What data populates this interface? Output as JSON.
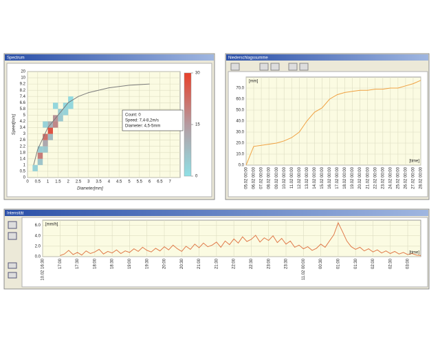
{
  "chart_data": [
    {
      "type": "heatmap",
      "title": "Spectrum",
      "x_label": "Diameter[mm]",
      "y_label": "Speed[m/s]",
      "xlim": [
        0,
        7.5
      ],
      "xticks": [
        0,
        0.5,
        1,
        1.5,
        2,
        2.5,
        3,
        3.5,
        4,
        4.5,
        5,
        5.5,
        6,
        6.5,
        7
      ],
      "yscale": "class",
      "yticks": [
        0,
        0.5,
        1,
        1.4,
        1.8,
        2.2,
        2.6,
        3,
        3.4,
        4.2,
        5,
        5.8,
        6.6,
        7.4,
        8.2,
        9.2,
        10,
        20
      ],
      "clim": [
        0,
        30
      ],
      "cticks": [
        0,
        15,
        30
      ],
      "colormap": [
        "#8fe0e6",
        "#b59aa0",
        "#e8402a"
      ],
      "grid": true,
      "cells": [
        {
          "x": [
            0.25,
            0.5
          ],
          "y": [
            0.5,
            1
          ],
          "count": 3
        },
        {
          "x": [
            0.5,
            0.75
          ],
          "y": [
            1,
            1.4
          ],
          "count": 6
        },
        {
          "x": [
            0.5,
            0.75
          ],
          "y": [
            1.4,
            1.8
          ],
          "count": 20
        },
        {
          "x": [
            0.5,
            0.75
          ],
          "y": [
            1.8,
            2.2
          ],
          "count": 4
        },
        {
          "x": [
            0.75,
            1
          ],
          "y": [
            1.8,
            2.2
          ],
          "count": 5
        },
        {
          "x": [
            0.75,
            1
          ],
          "y": [
            2.2,
            2.6
          ],
          "count": 12
        },
        {
          "x": [
            0.75,
            1
          ],
          "y": [
            2.6,
            3
          ],
          "count": 22
        },
        {
          "x": [
            1,
            1.25
          ],
          "y": [
            2.6,
            3
          ],
          "count": 8
        },
        {
          "x": [
            1,
            1.25
          ],
          "y": [
            3,
            3.4
          ],
          "count": 27
        },
        {
          "x": [
            1,
            1.25
          ],
          "y": [
            3.4,
            4.2
          ],
          "count": 10
        },
        {
          "x": [
            1.25,
            1.5
          ],
          "y": [
            3.4,
            4.2
          ],
          "count": 18
        },
        {
          "x": [
            1.25,
            1.5
          ],
          "y": [
            4.2,
            5
          ],
          "count": 16
        },
        {
          "x": [
            1.5,
            1.75
          ],
          "y": [
            4.2,
            5
          ],
          "count": 5
        },
        {
          "x": [
            1.5,
            1.75
          ],
          "y": [
            5,
            5.8
          ],
          "count": 4
        },
        {
          "x": [
            1.75,
            2
          ],
          "y": [
            5,
            5.8
          ],
          "count": 3
        },
        {
          "x": [
            1.75,
            2
          ],
          "y": [
            5.8,
            6.6
          ],
          "count": 2
        },
        {
          "x": [
            2,
            2.25
          ],
          "y": [
            5.8,
            6.6
          ],
          "count": 2
        },
        {
          "x": [
            2,
            2.25
          ],
          "y": [
            6.6,
            7.4
          ],
          "count": 1
        },
        {
          "x": [
            1.25,
            1.5
          ],
          "y": [
            5.8,
            6.6
          ],
          "count": 2
        },
        {
          "x": [
            0.75,
            1
          ],
          "y": [
            3.4,
            4.2
          ],
          "count": 3
        }
      ],
      "curve": {
        "color": "#7a7a7a",
        "x": [
          0.3,
          0.5,
          1,
          1.5,
          2,
          2.5,
          3,
          4,
          5,
          6
        ],
        "y": [
          1,
          2,
          3.4,
          5,
          6.6,
          7.4,
          7.9,
          8.6,
          9,
          9.2
        ]
      },
      "annotations": [
        "Count: 0",
        "Speed: 7,4-8,2m/s",
        "Diameter: 4,5-5mm"
      ]
    },
    {
      "type": "line",
      "title": "Niederschlagssumme",
      "y_label": "[mm]",
      "x_label": "[time]",
      "categories": [
        "05.02 00:00",
        "06.02 00:00",
        "07.02 00:00",
        "08.02 00:00",
        "09.02 00:00",
        "10.02 00:00",
        "11.02 00:00",
        "12.02 00:00",
        "13.02 00:00",
        "14.02 00:00",
        "15.02 00:00",
        "16.02 00:00",
        "17.02 00:00",
        "18.02 00:00",
        "19.02 00:00",
        "20.02 00:00",
        "21.02 00:00",
        "22.02 00:00",
        "23.02 00:00",
        "24.02 00:00",
        "25.02 00:00",
        "26.02 00:00",
        "27.02 00:00",
        "28.02 00:00"
      ],
      "values": [
        0,
        17,
        18,
        19,
        20,
        22,
        25,
        30,
        40,
        48,
        52,
        60,
        64,
        66,
        67,
        68,
        68,
        69,
        69,
        70,
        70,
        72,
        74,
        77
      ],
      "color": "#f0a040",
      "ylim": [
        0,
        80
      ],
      "yticks": [
        {
          "value": 0,
          "label": "0.0"
        },
        {
          "value": 10,
          "label": "10.0"
        },
        {
          "value": 20,
          "label": "20.0"
        },
        {
          "value": 30,
          "label": "30.0"
        },
        {
          "value": 40,
          "label": "40.0"
        },
        {
          "value": 50,
          "label": "50.0"
        },
        {
          "value": 60,
          "label": "60.0"
        },
        {
          "value": 70,
          "label": "70.0"
        }
      ],
      "grid": true
    },
    {
      "type": "line",
      "title": "Intensität",
      "y_label": "[mm/h]",
      "x_label": "[time]",
      "categories": [
        "10.02 16:30",
        null,
        null,
        null,
        "17:00",
        null,
        null,
        null,
        "17:30",
        null,
        null,
        null,
        "18:00",
        null,
        null,
        null,
        "18:30",
        null,
        null,
        null,
        "19:00",
        null,
        null,
        null,
        "19:30",
        null,
        null,
        null,
        "20:00",
        null,
        null,
        null,
        "20:30",
        null,
        null,
        null,
        "21:00",
        null,
        null,
        null,
        "21:30",
        null,
        null,
        null,
        "22:00",
        null,
        null,
        null,
        "22:30",
        null,
        null,
        null,
        "23:00",
        null,
        null,
        null,
        "23:30",
        null,
        null,
        null,
        "11.02 00:00",
        null,
        null,
        null,
        "00:30",
        null,
        null,
        null,
        "01:00",
        null,
        null,
        null,
        "01:30",
        null,
        null,
        null,
        "02:00",
        null,
        null,
        null,
        "02:30",
        null,
        null,
        null,
        "03:00",
        null,
        null,
        null
      ],
      "values": [
        null,
        null,
        null,
        null,
        0.2,
        0.5,
        1.2,
        0.4,
        0.8,
        0.3,
        1.1,
        0.6,
        0.9,
        1.4,
        0.5,
        1.0,
        0.7,
        1.3,
        0.6,
        1.1,
        0.8,
        1.5,
        1.0,
        1.8,
        1.2,
        0.9,
        1.6,
        1.1,
        1.9,
        1.3,
        2.2,
        1.5,
        1.0,
        2.0,
        1.4,
        2.4,
        1.7,
        2.6,
        1.9,
        2.2,
        2.8,
        1.8,
        3.0,
        2.3,
        3.4,
        2.6,
        3.8,
        2.9,
        3.3,
        4.1,
        2.8,
        3.6,
        3.1,
        4.0,
        2.7,
        3.5,
        2.4,
        3.0,
        1.8,
        2.2,
        1.5,
        1.9,
        1.2,
        1.6,
        2.4,
        1.8,
        3.0,
        4.2,
        6.5,
        4.8,
        3.0,
        1.9,
        1.4,
        1.8,
        1.1,
        1.5,
        0.9,
        1.3,
        0.7,
        1.1,
        0.6,
        1.0,
        0.5,
        0.8,
        0.4,
        0.6,
        0.3,
        0.2
      ],
      "color": "#e07848",
      "ylim": [
        0,
        7
      ],
      "yticks": [
        {
          "value": 0,
          "label": "0.0"
        },
        {
          "value": 2,
          "label": "2.0"
        },
        {
          "value": 4,
          "label": "4.0"
        },
        {
          "value": 6,
          "label": "6.0"
        }
      ],
      "grid": true
    }
  ]
}
